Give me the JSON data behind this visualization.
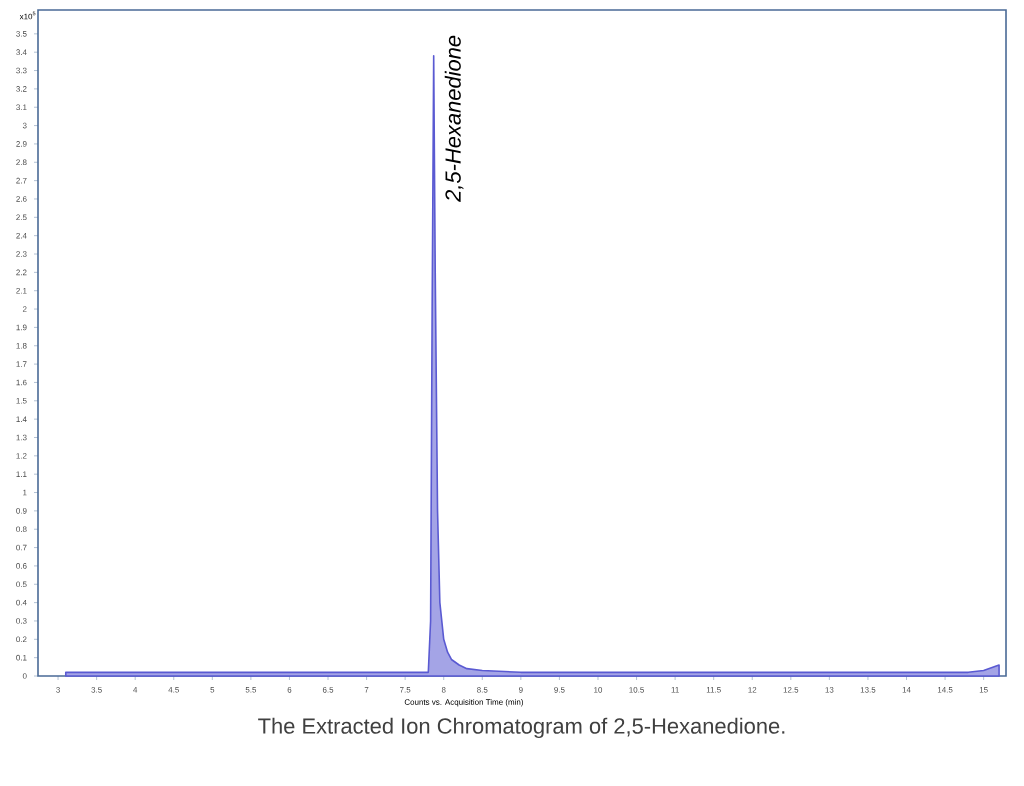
{
  "chart_data": {
    "type": "area",
    "title": "The Extracted Ion Chromatogram of 2,5-Hexanedione.",
    "xlabel": "Counts vs. Acquisition Time (min)",
    "annotations": [
      "x10$^{5}$",
      {
        "text": "2,5-Hexanedione",
        "x": 7.87,
        "y": 3.38
      }
    ],
    "series": [
      {
        "color": "#5a5ad2",
        "x": [
          3.1,
          4,
          5,
          6,
          7,
          7.5,
          7.8,
          7.83,
          7.85,
          7.87,
          7.89,
          7.92,
          7.95,
          8.0,
          8.05,
          8.1,
          8.2,
          8.3,
          8.5,
          9,
          10,
          11,
          12,
          13,
          14,
          14.8,
          15.0,
          15.2
        ],
        "values": [
          0.02,
          0.02,
          0.02,
          0.02,
          0.02,
          0.02,
          0.02,
          0.3,
          2.0,
          3.38,
          2.2,
          0.9,
          0.4,
          0.2,
          0.13,
          0.09,
          0.06,
          0.04,
          0.03,
          0.02,
          0.02,
          0.02,
          0.02,
          0.02,
          0.02,
          0.02,
          0.03,
          0.06
        ]
      }
    ],
    "xlim": [
      2.74,
      15.29
    ],
    "ylim": [
      0,
      3.63
    ],
    "xticks": [
      3,
      3.5,
      4,
      4.5,
      5,
      5.5,
      6,
      6.5,
      7,
      7.5,
      8,
      8.5,
      9,
      9.5,
      10,
      10.5,
      11,
      11.5,
      12,
      12.5,
      13,
      13.5,
      14,
      14.5,
      15
    ],
    "yticks": [
      0,
      0.1,
      0.2,
      0.3,
      0.4,
      0.5,
      0.6,
      0.7,
      0.8,
      0.9,
      1,
      1.1,
      1.2,
      1.3,
      1.4,
      1.5,
      1.6,
      1.7,
      1.8,
      1.9,
      2,
      2.1,
      2.2,
      2.3,
      2.4,
      2.5,
      2.6,
      2.7,
      2.8,
      2.9,
      3,
      3.1,
      3.2,
      3.3,
      3.4,
      3.5
    ]
  }
}
